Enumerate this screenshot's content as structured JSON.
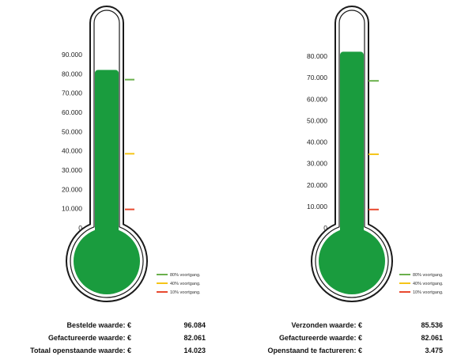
{
  "chart_data": [
    {
      "type": "thermometer",
      "yticks": [
        "0",
        "10.000",
        "20.000",
        "30.000",
        "40.000",
        "50.000",
        "60.000",
        "70.000",
        "80.000",
        "90.000"
      ],
      "ylim": [
        0,
        90000
      ],
      "value": 82061,
      "markers": [
        {
          "value": 77000,
          "color": "#6ab04c"
        },
        {
          "value": 38500,
          "color": "#f5c518"
        },
        {
          "value": 9600,
          "color": "#e8492f"
        }
      ],
      "legend": [
        {
          "label": "80% voortgang.",
          "color": "#6ab04c"
        },
        {
          "label": "40% voortgang.",
          "color": "#f5c518"
        },
        {
          "label": "10% voortgang.",
          "color": "#e8492f"
        }
      ],
      "fill_color": "#1a9c3e"
    },
    {
      "type": "thermometer",
      "yticks": [
        "0",
        "10.000",
        "20.000",
        "30.000",
        "40.000",
        "50.000",
        "60.000",
        "70.000",
        "80.000"
      ],
      "ylim": [
        0,
        80000
      ],
      "value": 82061,
      "markers": [
        {
          "value": 68500,
          "color": "#6ab04c"
        },
        {
          "value": 34300,
          "color": "#f5c518"
        },
        {
          "value": 8550,
          "color": "#e8492f"
        }
      ],
      "legend": [
        {
          "label": "80% voortgang.",
          "color": "#6ab04c"
        },
        {
          "label": "40% voortgang.",
          "color": "#f5c518"
        },
        {
          "label": "10% voortgang.",
          "color": "#e8492f"
        }
      ],
      "fill_color": "#1a9c3e"
    }
  ],
  "stats_left": [
    {
      "label": "Bestelde waarde: €",
      "value": "96.084"
    },
    {
      "label": "Gefactureerde waarde: €",
      "value": "82.061"
    },
    {
      "label": "Totaal openstaande waarde: €",
      "value": "14.023"
    }
  ],
  "stats_right": [
    {
      "label": "Verzonden waarde: €",
      "value": "85.536"
    },
    {
      "label": "Gefactureerde waarde: €",
      "value": "82.061"
    },
    {
      "label": "Openstaand te factureren: €",
      "value": "3.475"
    }
  ]
}
